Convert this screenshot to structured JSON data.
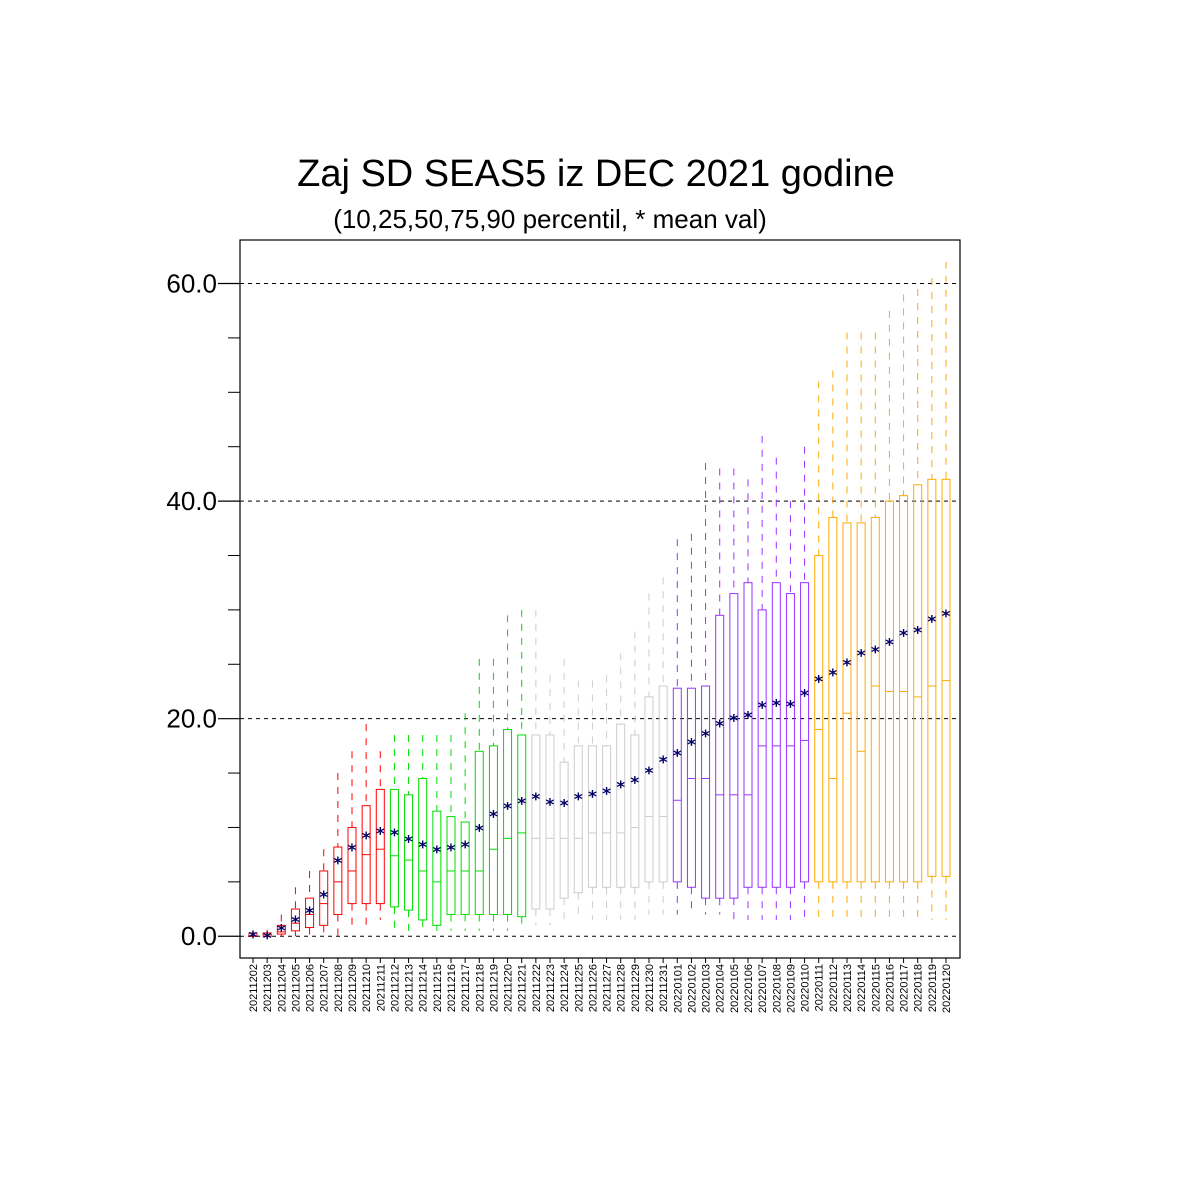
{
  "chart_data": {
    "type": "box",
    "title": "Zaj SD SEAS5 iz DEC 2021 godine",
    "subtitle": "(10,25,50,75,90 percentil, * mean val)",
    "ylim": [
      -2,
      64
    ],
    "yticks": [
      0,
      20,
      40,
      60
    ],
    "ytick_labels": [
      "0.0",
      "20.0",
      "40.0",
      "60.0"
    ],
    "yminor": [
      5,
      10,
      15,
      25,
      30,
      35,
      45,
      50,
      55
    ],
    "grid": "y-major-dashed",
    "mean_marker": "*",
    "mean_color": "#000066",
    "categories": [
      "20211202",
      "20211203",
      "20211204",
      "20211205",
      "20211206",
      "20211207",
      "20211208",
      "20211209",
      "20211210",
      "20211211",
      "20211212",
      "20211213",
      "20211214",
      "20211215",
      "20211216",
      "20211217",
      "20211218",
      "20211219",
      "20211220",
      "20211221",
      "20211222",
      "20211223",
      "20211224",
      "20211225",
      "20211226",
      "20211227",
      "20211228",
      "20211229",
      "20211230",
      "20211231",
      "20220101",
      "20220102",
      "20220103",
      "20220104",
      "20220105",
      "20220106",
      "20220107",
      "20220108",
      "20220109",
      "20220110",
      "20220111",
      "20220112",
      "20220113",
      "20220114",
      "20220115",
      "20220116",
      "20220117",
      "20220118",
      "20220119",
      "20220120"
    ],
    "colors": [
      "#ff0000",
      "#ff0000",
      "#ff0000",
      "#ff0000",
      "#ff0000",
      "#ff0000",
      "#ff0000",
      "#ff0000",
      "#ff0000",
      "#ff0000",
      "#00dd00",
      "#00dd00",
      "#00dd00",
      "#00dd00",
      "#00dd00",
      "#00dd00",
      "#00dd00",
      "#00dd00",
      "#00dd00",
      "#00dd00",
      "#cccccc",
      "#cccccc",
      "#cccccc",
      "#cccccc",
      "#cccccc",
      "#cccccc",
      "#cccccc",
      "#cccccc",
      "#cccccc",
      "#cccccc",
      "#9933ff",
      "#9933ff",
      "#9933ff",
      "#9933ff",
      "#9933ff",
      "#9933ff",
      "#9933ff",
      "#9933ff",
      "#9933ff",
      "#9933ff",
      "#ffaa00",
      "#ffaa00",
      "#ffaa00",
      "#ffaa00",
      "#ffaa00",
      "#ffaa00",
      "#ffaa00",
      "#ffaa00",
      "#ffaa00",
      "#ffaa00"
    ],
    "p10": [
      0,
      0,
      0,
      0,
      0,
      0,
      0,
      0.5,
      1,
      1.5,
      0.5,
      0.5,
      0.5,
      0.5,
      0.5,
      0.5,
      0.5,
      0.5,
      0.5,
      0.5,
      1,
      1,
      1,
      1.5,
      1.5,
      1.5,
      1.5,
      1.5,
      2,
      2,
      2,
      2,
      2,
      2,
      1.5,
      1.5,
      1.5,
      1.5,
      1.5,
      1.5,
      1.5,
      1.5,
      1.5,
      1.5,
      1.5,
      1.5,
      1.5,
      1.5,
      1.5,
      1.5
    ],
    "p25": [
      0,
      0,
      0.2,
      0.5,
      0.8,
      1,
      2,
      3,
      3,
      3,
      2.7,
      2.4,
      1.5,
      1,
      2,
      2,
      2,
      2,
      2,
      1.8,
      2.5,
      2.5,
      3.5,
      4,
      4.5,
      4.5,
      4.5,
      4.5,
      5,
      5,
      5,
      4.5,
      3.5,
      3.5,
      3.5,
      4.5,
      4.5,
      4.5,
      4.5,
      5,
      5,
      5,
      5,
      5,
      5,
      5,
      5,
      5,
      5.5,
      5.5
    ],
    "p50": [
      0,
      0,
      0.4,
      1.2,
      2,
      3,
      5,
      6,
      7.5,
      8,
      7.4,
      7,
      6,
      5,
      6,
      6,
      6,
      8,
      9,
      9.5,
      9,
      9,
      9,
      9,
      9.5,
      9.5,
      9.5,
      10,
      11,
      11,
      12.5,
      14.5,
      14.5,
      13,
      13,
      13,
      17.5,
      17.5,
      17.5,
      18,
      19,
      14.5,
      20.5,
      17,
      23,
      22.5,
      22.5,
      22,
      23,
      23.5
    ],
    "p75": [
      0.3,
      0.3,
      1,
      2.5,
      3.5,
      6,
      8.2,
      10,
      12,
      13.5,
      13.5,
      13,
      14.5,
      11.5,
      11,
      10.5,
      17,
      17.5,
      19,
      18.5,
      18.5,
      18.5,
      16,
      17.5,
      17.5,
      17.5,
      19.5,
      18.5,
      22,
      23,
      22.8,
      22.8,
      23,
      29.5,
      31.5,
      32.5,
      30,
      32.5,
      31.5,
      32.5,
      35,
      38.5,
      38,
      38,
      38.5,
      40,
      40.5,
      41.5,
      42,
      42
    ],
    "p90": [
      0.5,
      0.6,
      2,
      4.5,
      6,
      8,
      15,
      17,
      19.5,
      17,
      18.5,
      18.5,
      18.5,
      18.5,
      18.5,
      20.5,
      25.5,
      25.5,
      29.5,
      30,
      30,
      24,
      25.5,
      23.5,
      23.5,
      24,
      26,
      28,
      31.5,
      33,
      36.5,
      37,
      43.5,
      43,
      43,
      42,
      46,
      44,
      40,
      45,
      51,
      52,
      55.5,
      55.5,
      55.5,
      57.5,
      59,
      59.5,
      60.5,
      62
    ],
    "mean": [
      0.2,
      0.1,
      0.8,
      1.6,
      2.4,
      3.9,
      7,
      8.2,
      9.3,
      9.7,
      9.6,
      9,
      8.5,
      8,
      8.2,
      8.5,
      10,
      11.3,
      12,
      12.5,
      12.9,
      12.4,
      12.3,
      12.9,
      13.1,
      13.4,
      14,
      14.4,
      15.3,
      16.3,
      16.9,
      17.9,
      18.7,
      19.6,
      20.1,
      20.4,
      21.3,
      21.5,
      21.4,
      22.4,
      23.7,
      24.3,
      25.2,
      26.1,
      26.4,
      27.1,
      27.9,
      28.2,
      29.2,
      29.7
    ]
  }
}
